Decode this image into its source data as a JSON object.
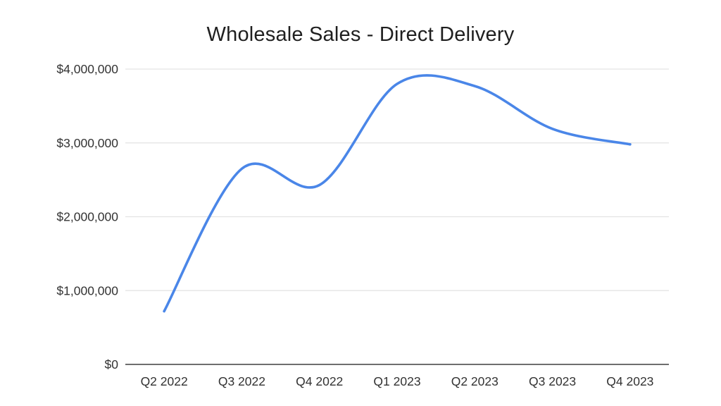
{
  "chart_data": {
    "type": "line",
    "title": "Wholesale Sales - Direct Delivery",
    "categories": [
      "Q2 2022",
      "Q3 2022",
      "Q4 2022",
      "Q1 2023",
      "Q2 2023",
      "Q3 2023",
      "Q4 2023"
    ],
    "values": [
      720000,
      2650000,
      2430000,
      3800000,
      3770000,
      3190000,
      2980000
    ],
    "xlabel": "",
    "ylabel": "",
    "ylim": [
      0,
      4000000
    ],
    "y_ticks": [
      0,
      1000000,
      2000000,
      3000000,
      4000000
    ],
    "y_tick_labels": [
      "$0",
      "$1,000,000",
      "$2,000,000",
      "$3,000,000",
      "$4,000,000"
    ],
    "grid": true,
    "legend": "none",
    "line_style": "smooth",
    "colors": {
      "line": "#4a86e8",
      "gridline": "#e3e3e3",
      "zero_axis": "#6e6e6e",
      "tick_label": "#333333",
      "title": "#1f1f1f",
      "background": "#ffffff"
    }
  }
}
